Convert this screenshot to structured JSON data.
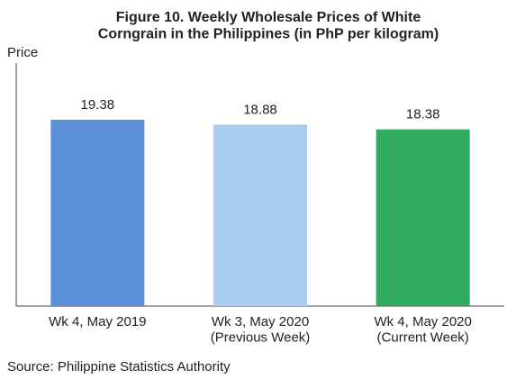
{
  "chart_data": {
    "type": "bar",
    "title": "Figure 10. Weekly Wholesale Prices of White\nCorngrain in the Philippines (in PhP per kilogram)",
    "y_label": "Price",
    "categories": [
      "Wk 4, May 2019",
      "Wk 3, May 2020\n(Previous Week)",
      "Wk 4, May 2020\n(Current Week)"
    ],
    "values": [
      19.38,
      18.88,
      18.38
    ],
    "colors": [
      "#5b8fd8",
      "#a9cdf0",
      "#2faa5f"
    ],
    "ylim": [
      0,
      25
    ],
    "source": "Source: Philippine Statistics Authority"
  }
}
